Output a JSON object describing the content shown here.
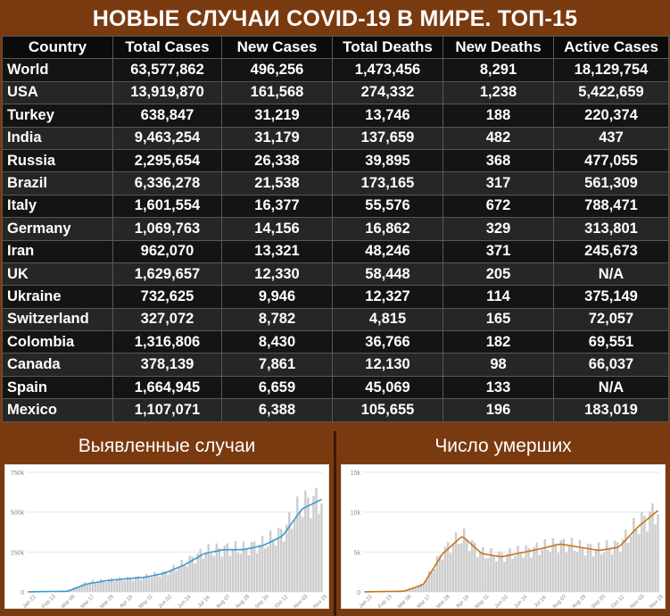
{
  "header": {
    "title": "НОВЫЕ СЛУЧАИ COVID-19 В МИРЕ. ТОП-15"
  },
  "table": {
    "columns": [
      {
        "label": "Country",
        "color": "#ffffff"
      },
      {
        "label": "Total Cases",
        "color": "#ffff2e"
      },
      {
        "label": "New Cases",
        "color": "#ffff2e"
      },
      {
        "label": "Total Deaths",
        "color": "#f08080"
      },
      {
        "label": "New Deaths",
        "color": "#f08080"
      },
      {
        "label": "Active Cases",
        "color": "#ffff2e"
      }
    ],
    "rows": [
      [
        "World",
        "63,577,862",
        "496,256",
        "1,473,456",
        "8,291",
        "18,129,754"
      ],
      [
        "USA",
        "13,919,870",
        "161,568",
        "274,332",
        "1,238",
        "5,422,659"
      ],
      [
        "Turkey",
        "638,847",
        "31,219",
        "13,746",
        "188",
        "220,374"
      ],
      [
        "India",
        "9,463,254",
        "31,179",
        "137,659",
        "482",
        "437"
      ],
      [
        "Russia",
        "2,295,654",
        "26,338",
        "39,895",
        "368",
        "477,055"
      ],
      [
        "Brazil",
        "6,336,278",
        "21,538",
        "173,165",
        "317",
        "561,309"
      ],
      [
        "Italy",
        "1,601,554",
        "16,377",
        "55,576",
        "672",
        "788,471"
      ],
      [
        "Germany",
        "1,069,763",
        "14,156",
        "16,862",
        "329",
        "313,801"
      ],
      [
        "Iran",
        "962,070",
        "13,321",
        "48,246",
        "371",
        "245,673"
      ],
      [
        "UK",
        "1,629,657",
        "12,330",
        "58,448",
        "205",
        "N/A"
      ],
      [
        "Ukraine",
        "732,625",
        "9,946",
        "12,327",
        "114",
        "375,149"
      ],
      [
        "Switzerland",
        "327,072",
        "8,782",
        "4,815",
        "165",
        "72,057"
      ],
      [
        "Colombia",
        "1,316,806",
        "8,430",
        "36,766",
        "182",
        "69,551"
      ],
      [
        "Canada",
        "378,139",
        "7,861",
        "12,130",
        "98",
        "66,037"
      ],
      [
        "Spain",
        "1,664,945",
        "6,659",
        "45,069",
        "133",
        "N/A"
      ],
      [
        "Mexico",
        "1,107,071",
        "6,388",
        "105,655",
        "196",
        "183,019"
      ]
    ]
  },
  "panels": {
    "cases_title": "Выявленные случаи",
    "deaths_title": "Число умерших"
  },
  "chart_data": [
    {
      "type": "bar",
      "title": "Выявленные случаи",
      "ylim": [
        0,
        750000
      ],
      "yticks": [
        "0",
        "250k",
        "500k",
        "750k"
      ],
      "x": [
        "Jan 22",
        "Feb 13",
        "Mar 06",
        "Mar 17",
        "Mar 28",
        "Apr 19",
        "May 11",
        "Jun 02",
        "Jun 24",
        "Jul 16",
        "Aug 07",
        "Aug 29",
        "Sep 20",
        "Oct 12",
        "Nov 03",
        "Nov 25"
      ],
      "series": [
        {
          "values": [
            500,
            3000,
            4000,
            60000,
            75000,
            80000,
            95000,
            120000,
            180000,
            250000,
            270000,
            270000,
            300000,
            370000,
            550000,
            580000
          ],
          "color": "#cccccc"
        },
        {
          "values": [
            500,
            2500,
            3500,
            50000,
            70000,
            82000,
            92000,
            118000,
            170000,
            240000,
            265000,
            265000,
            290000,
            350000,
            520000,
            580000
          ],
          "color": "#3a9bd0"
        }
      ],
      "grid": true
    },
    {
      "type": "bar",
      "title": "Число умерших",
      "ylim": [
        0,
        15000
      ],
      "yticks": [
        "0",
        "5k",
        "10k",
        "15k"
      ],
      "x": [
        "Jan 22",
        "Feb 13",
        "Mar 06",
        "Mar 17",
        "Mar 28",
        "Apr 19",
        "May 11",
        "Jun 02",
        "Jun 24",
        "Jul 16",
        "Aug 07",
        "Aug 29",
        "Sep 20",
        "Oct 12",
        "Nov 03",
        "Nov 25"
      ],
      "series": [
        {
          "values": [
            10,
            60,
            100,
            1000,
            5000,
            7000,
            4800,
            4500,
            5000,
            5500,
            6000,
            5600,
            5300,
            5800,
            8500,
            10200
          ],
          "color": "#cccccc"
        },
        {
          "values": [
            10,
            50,
            80,
            900,
            4800,
            7000,
            4800,
            4400,
            4900,
            5400,
            6000,
            5600,
            5200,
            5600,
            8200,
            10200
          ],
          "color": "#c8741c"
        }
      ],
      "grid": true
    }
  ]
}
